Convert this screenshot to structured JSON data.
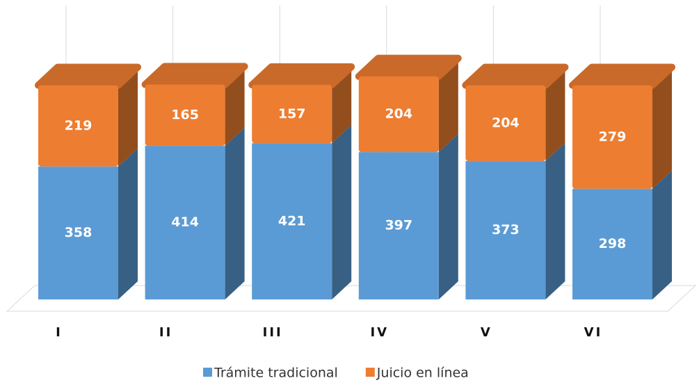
{
  "chart_data": {
    "type": "bar",
    "stacked": true,
    "categories": [
      "I",
      "II",
      "III",
      "IV",
      "V",
      "VI"
    ],
    "series": [
      {
        "name": "Trámite tradicional",
        "color": "#5b9bd5",
        "values": [
          358,
          414,
          421,
          397,
          373,
          298
        ]
      },
      {
        "name": "Juicio en línea",
        "color": "#ed7d31",
        "values": [
          219,
          165,
          157,
          204,
          204,
          279
        ]
      }
    ]
  }
}
